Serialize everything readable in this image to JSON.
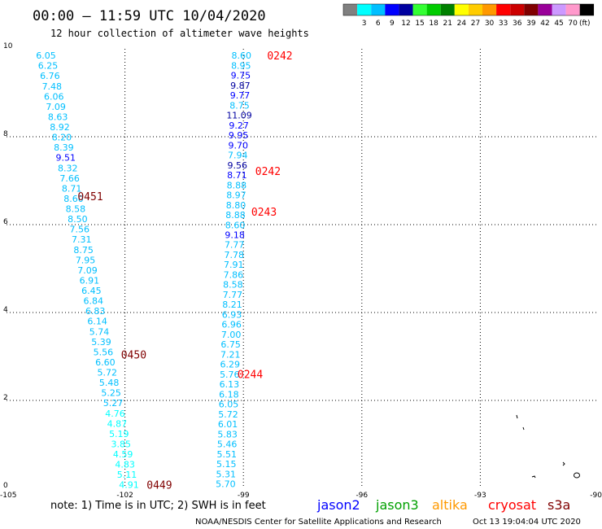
{
  "header": {
    "title": "00:00 – 11:59 UTC 10/04/2020",
    "subtitle": "12 hour collection of altimeter wave heights"
  },
  "legend": {
    "unit": "(ft)",
    "swatches": [
      {
        "color": "#808080",
        "label": ""
      },
      {
        "color": "#00ffff",
        "label": "3"
      },
      {
        "color": "#00bfff",
        "label": "6"
      },
      {
        "color": "#0000ff",
        "label": "9"
      },
      {
        "color": "#0000a0",
        "label": "12"
      },
      {
        "color": "#33ff33",
        "label": "15"
      },
      {
        "color": "#00cc00",
        "label": "18"
      },
      {
        "color": "#008000",
        "label": "21"
      },
      {
        "color": "#ffff00",
        "label": "24"
      },
      {
        "color": "#ffcc00",
        "label": "27"
      },
      {
        "color": "#ff9900",
        "label": "30"
      },
      {
        "color": "#ff0000",
        "label": "33"
      },
      {
        "color": "#cc0000",
        "label": "36"
      },
      {
        "color": "#800000",
        "label": "39"
      },
      {
        "color": "#990099",
        "label": "42"
      },
      {
        "color": "#cc99ff",
        "label": "45"
      },
      {
        "color": "#ff99cc",
        "label": "70"
      },
      {
        "color": "#000000",
        "label": ""
      }
    ]
  },
  "axes": {
    "lon_ticks": [
      -105,
      -102,
      -99,
      -96,
      -93,
      -90
    ],
    "lon_labels": [
      "-105",
      "-102",
      "-99",
      "-96",
      "-93",
      "-90"
    ],
    "lat_ticks": [
      0,
      2,
      4,
      6,
      8,
      10
    ],
    "lat_labels": [
      "0",
      "2",
      "4",
      "6",
      "8",
      "10"
    ]
  },
  "tracks": [
    {
      "name": "track-west",
      "lon_start": -104.0,
      "lat_start": 9.85,
      "lon_end": -101.9,
      "lat_end": 0.08,
      "values": [
        "6.05",
        "6.25",
        "6.76",
        "7.48",
        "6.06",
        "7.09",
        "8.63",
        "8.92",
        "8.20",
        "8.39",
        "9.51",
        "8.32",
        "7.66",
        "8.71",
        "8.60",
        "8.58",
        "8.50",
        "7.56",
        "7.31",
        "8.75",
        "7.95",
        "7.09",
        "6.91",
        "6.45",
        "6.84",
        "6.83",
        "6.14",
        "5.74",
        "5.39",
        "5.56",
        "6.60",
        "5.72",
        "5.48",
        "5.25",
        "5.27",
        "4.76",
        "4.87",
        "5.19",
        "3.85",
        "4.59",
        "4.83",
        "5.11",
        "4.91"
      ],
      "colors": [
        "#00bfff",
        "#00bfff",
        "#00bfff",
        "#00bfff",
        "#00bfff",
        "#00bfff",
        "#00bfff",
        "#00bfff",
        "#00bfff",
        "#00bfff",
        "#0000ff",
        "#00bfff",
        "#00bfff",
        "#00bfff",
        "#00bfff",
        "#00bfff",
        "#00bfff",
        "#00bfff",
        "#00bfff",
        "#00bfff",
        "#00bfff",
        "#00bfff",
        "#00bfff",
        "#00bfff",
        "#00bfff",
        "#00bfff",
        "#00bfff",
        "#00bfff",
        "#00bfff",
        "#00bfff",
        "#00bfff",
        "#00bfff",
        "#00bfff",
        "#00bfff",
        "#00bfff",
        "#00ffff",
        "#00ffff",
        "#00ffff",
        "#00ffff",
        "#00ffff",
        "#00ffff",
        "#00ffff",
        "#00ffff"
      ]
    },
    {
      "name": "track-east",
      "lon_start": -99.05,
      "lat_start": 9.85,
      "lon_end": -99.45,
      "lat_end": 0.1,
      "values": [
        "8.60",
        "8.95",
        "9.75",
        "9.87",
        "9.77",
        "8.75",
        "11.09",
        "9.27",
        "9.95",
        "9.70",
        "7.94",
        "9.56",
        "8.71",
        "8.88",
        "8.97",
        "8.80",
        "8.88",
        "8.60",
        "9.18",
        "7.77",
        "7.78",
        "7.91",
        "7.86",
        "8.58",
        "7.77",
        "8.21",
        "6.93",
        "6.96",
        "7.00",
        "6.75",
        "7.21",
        "6.29",
        "5.76",
        "6.13",
        "6.18",
        "6.05",
        "5.72",
        "6.01",
        "5.83",
        "5.46",
        "5.51",
        "5.15",
        "5.31",
        "5.70"
      ],
      "colors": [
        "#00bfff",
        "#00bfff",
        "#0000ff",
        "#0000a0",
        "#0000ff",
        "#00bfff",
        "#0000a0",
        "#0000ff",
        "#0000ff",
        "#0000ff",
        "#00bfff",
        "#0000a0",
        "#0000ff",
        "#00bfff",
        "#00bfff",
        "#00bfff",
        "#00bfff",
        "#00bfff",
        "#0000ff",
        "#00bfff",
        "#00bfff",
        "#00bfff",
        "#00bfff",
        "#00bfff",
        "#00bfff",
        "#00bfff",
        "#00bfff",
        "#00bfff",
        "#00bfff",
        "#00bfff",
        "#00bfff",
        "#00bfff",
        "#00bfff",
        "#00bfff",
        "#00bfff",
        "#00bfff",
        "#00bfff",
        "#00bfff",
        "#00bfff",
        "#00bfff",
        "#00bfff",
        "#00bfff",
        "#00bfff",
        "#00bfff"
      ]
    }
  ],
  "time_labels": [
    {
      "text": "0242",
      "lon": -98.4,
      "lat": 9.85,
      "color": "#ff0000"
    },
    {
      "text": "0242",
      "lon": -98.7,
      "lat": 7.22,
      "color": "#ff0000"
    },
    {
      "text": "0243",
      "lon": -98.8,
      "lat": 6.3,
      "color": "#ff0000"
    },
    {
      "text": "0244",
      "lon": -99.15,
      "lat": 2.6,
      "color": "#ff0000"
    },
    {
      "text": "0451",
      "lon": -103.2,
      "lat": 6.65,
      "color": "#800000"
    },
    {
      "text": "0450",
      "lon": -102.1,
      "lat": 3.05,
      "color": "#800000"
    },
    {
      "text": "0449",
      "lon": -101.45,
      "lat": 0.08,
      "color": "#800000"
    }
  ],
  "satellites": [
    {
      "name": "jason2",
      "color": "#0000ff"
    },
    {
      "name": "jason3",
      "color": "#00a000"
    },
    {
      "name": "altika",
      "color": "#ff9900"
    },
    {
      "name": "cryosat",
      "color": "#ff0000"
    },
    {
      "name": "s3a",
      "color": "#800000"
    }
  ],
  "footer": {
    "note": "note: 1) Time is in UTC; 2) SWH is in feet",
    "credit": "NOAA/NESDIS Center for Satellite Applications and Research",
    "timestamp": "Oct 13 19:04:04 UTC 2020"
  }
}
